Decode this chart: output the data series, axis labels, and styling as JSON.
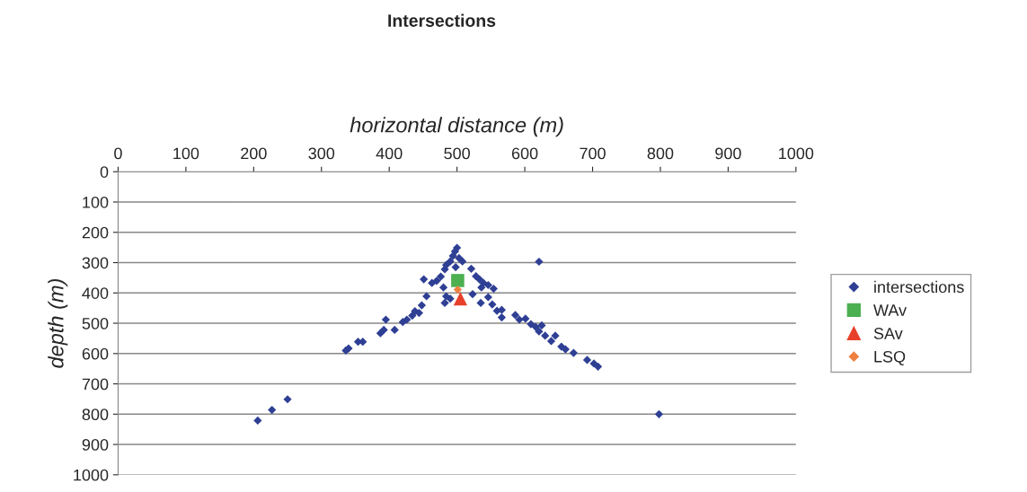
{
  "chart_data": {
    "type": "scatter",
    "title": "Intersections",
    "xlabel": "horizontal distance (m)",
    "ylabel": "depth (m)",
    "xlim": [
      0,
      1000
    ],
    "xticks": [
      0,
      100,
      200,
      300,
      400,
      500,
      600,
      700,
      800,
      900,
      1000
    ],
    "ylim": [
      1000,
      0
    ],
    "yticks": [
      0,
      100,
      200,
      300,
      400,
      500,
      600,
      700,
      800,
      900,
      1000
    ],
    "grid": "y",
    "legend": "right",
    "tick_labels": "xy",
    "series": [
      {
        "name": "intersections",
        "color": "#2e3f94",
        "marker": "diamond",
        "x": [
          206,
          227,
          250,
          621,
          798,
          336,
          340,
          354,
          361,
          387,
          392,
          395,
          408,
          420,
          426,
          434,
          438,
          444,
          448,
          455,
          451,
          463,
          470,
          476,
          482,
          484,
          490,
          494,
          497,
          500,
          503,
          508,
          498,
          480,
          484,
          482,
          490,
          521,
          528,
          533,
          539,
          546,
          554,
          536,
          523,
          535,
          546,
          552,
          559,
          566,
          566,
          586,
          592,
          601,
          609,
          616,
          625,
          621,
          630,
          639,
          645,
          654,
          660,
          672,
          692,
          702,
          708
        ],
        "values": [
          821,
          786,
          751,
          297,
          800,
          590,
          583,
          561,
          561,
          533,
          522,
          488,
          522,
          496,
          488,
          475,
          460,
          466,
          441,
          411,
          355,
          367,
          360,
          346,
          322,
          308,
          296,
          278,
          263,
          251,
          285,
          296,
          315,
          382,
          411,
          433,
          419,
          320,
          345,
          355,
          367,
          374,
          386,
          382,
          404,
          433,
          414,
          438,
          459,
          456,
          481,
          473,
          488,
          485,
          503,
          512,
          507,
          527,
          541,
          559,
          541,
          577,
          586,
          598,
          621,
          633,
          643
        ]
      },
      {
        "name": "WAv",
        "color": "#4caf50",
        "marker": "square",
        "x": [
          501
        ],
        "values": [
          359
        ]
      },
      {
        "name": "SAv",
        "color": "#e8402a",
        "marker": "triangle",
        "x": [
          505
        ],
        "values": [
          419
        ]
      },
      {
        "name": "LSQ",
        "color": "#f08040",
        "marker": "diamond",
        "x": [
          501
        ],
        "values": [
          389
        ]
      }
    ]
  }
}
